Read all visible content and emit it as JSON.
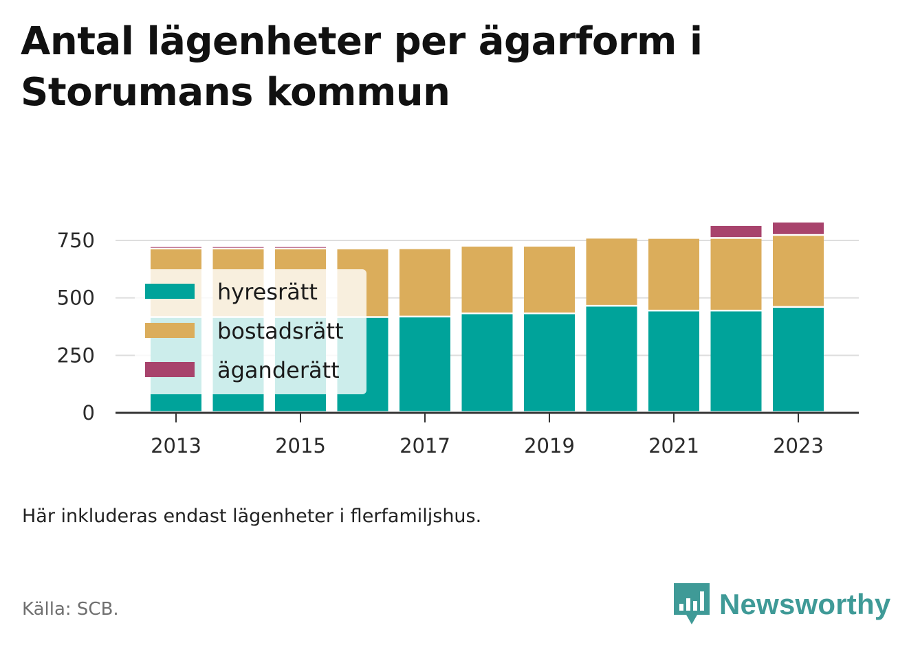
{
  "title": "Antal lägenheter per ägarform i Storumans kommun",
  "note": "Här inkluderas endast lägenheter i flerfamiljshus.",
  "source": "Källa: SCB.",
  "brand": {
    "name": "Newsworthy",
    "icon": "newsworthy-logo-icon",
    "color": "#3f9a97"
  },
  "chart_data": {
    "type": "bar",
    "stacked": true,
    "categories": [
      "2013",
      "2014",
      "2015",
      "2016",
      "2017",
      "2018",
      "2019",
      "2020",
      "2021",
      "2022",
      "2023"
    ],
    "x_tick_labels": [
      "2013",
      "2015",
      "2017",
      "2019",
      "2021",
      "2023"
    ],
    "series": [
      {
        "name": "hyresrätt",
        "color": "#00a39a",
        "values": [
          413,
          413,
          413,
          413,
          415,
          429,
          429,
          462,
          441,
          441,
          457
        ]
      },
      {
        "name": "bostadsrätt",
        "color": "#dbad5b",
        "values": [
          298,
          298,
          298,
          298,
          297,
          294,
          294,
          296,
          316,
          316,
          313
        ]
      },
      {
        "name": "äganderätt",
        "color": "#a8436c",
        "values": [
          10,
          10,
          10,
          0,
          0,
          0,
          0,
          0,
          0,
          56,
          58
        ]
      }
    ],
    "ylim": [
      0,
      850
    ],
    "y_ticks": [
      0,
      250,
      500,
      750
    ],
    "xlabel": "",
    "ylabel": "",
    "grid": true,
    "legend": {
      "position": "top-left inside plot",
      "semi_transparent": true
    }
  }
}
